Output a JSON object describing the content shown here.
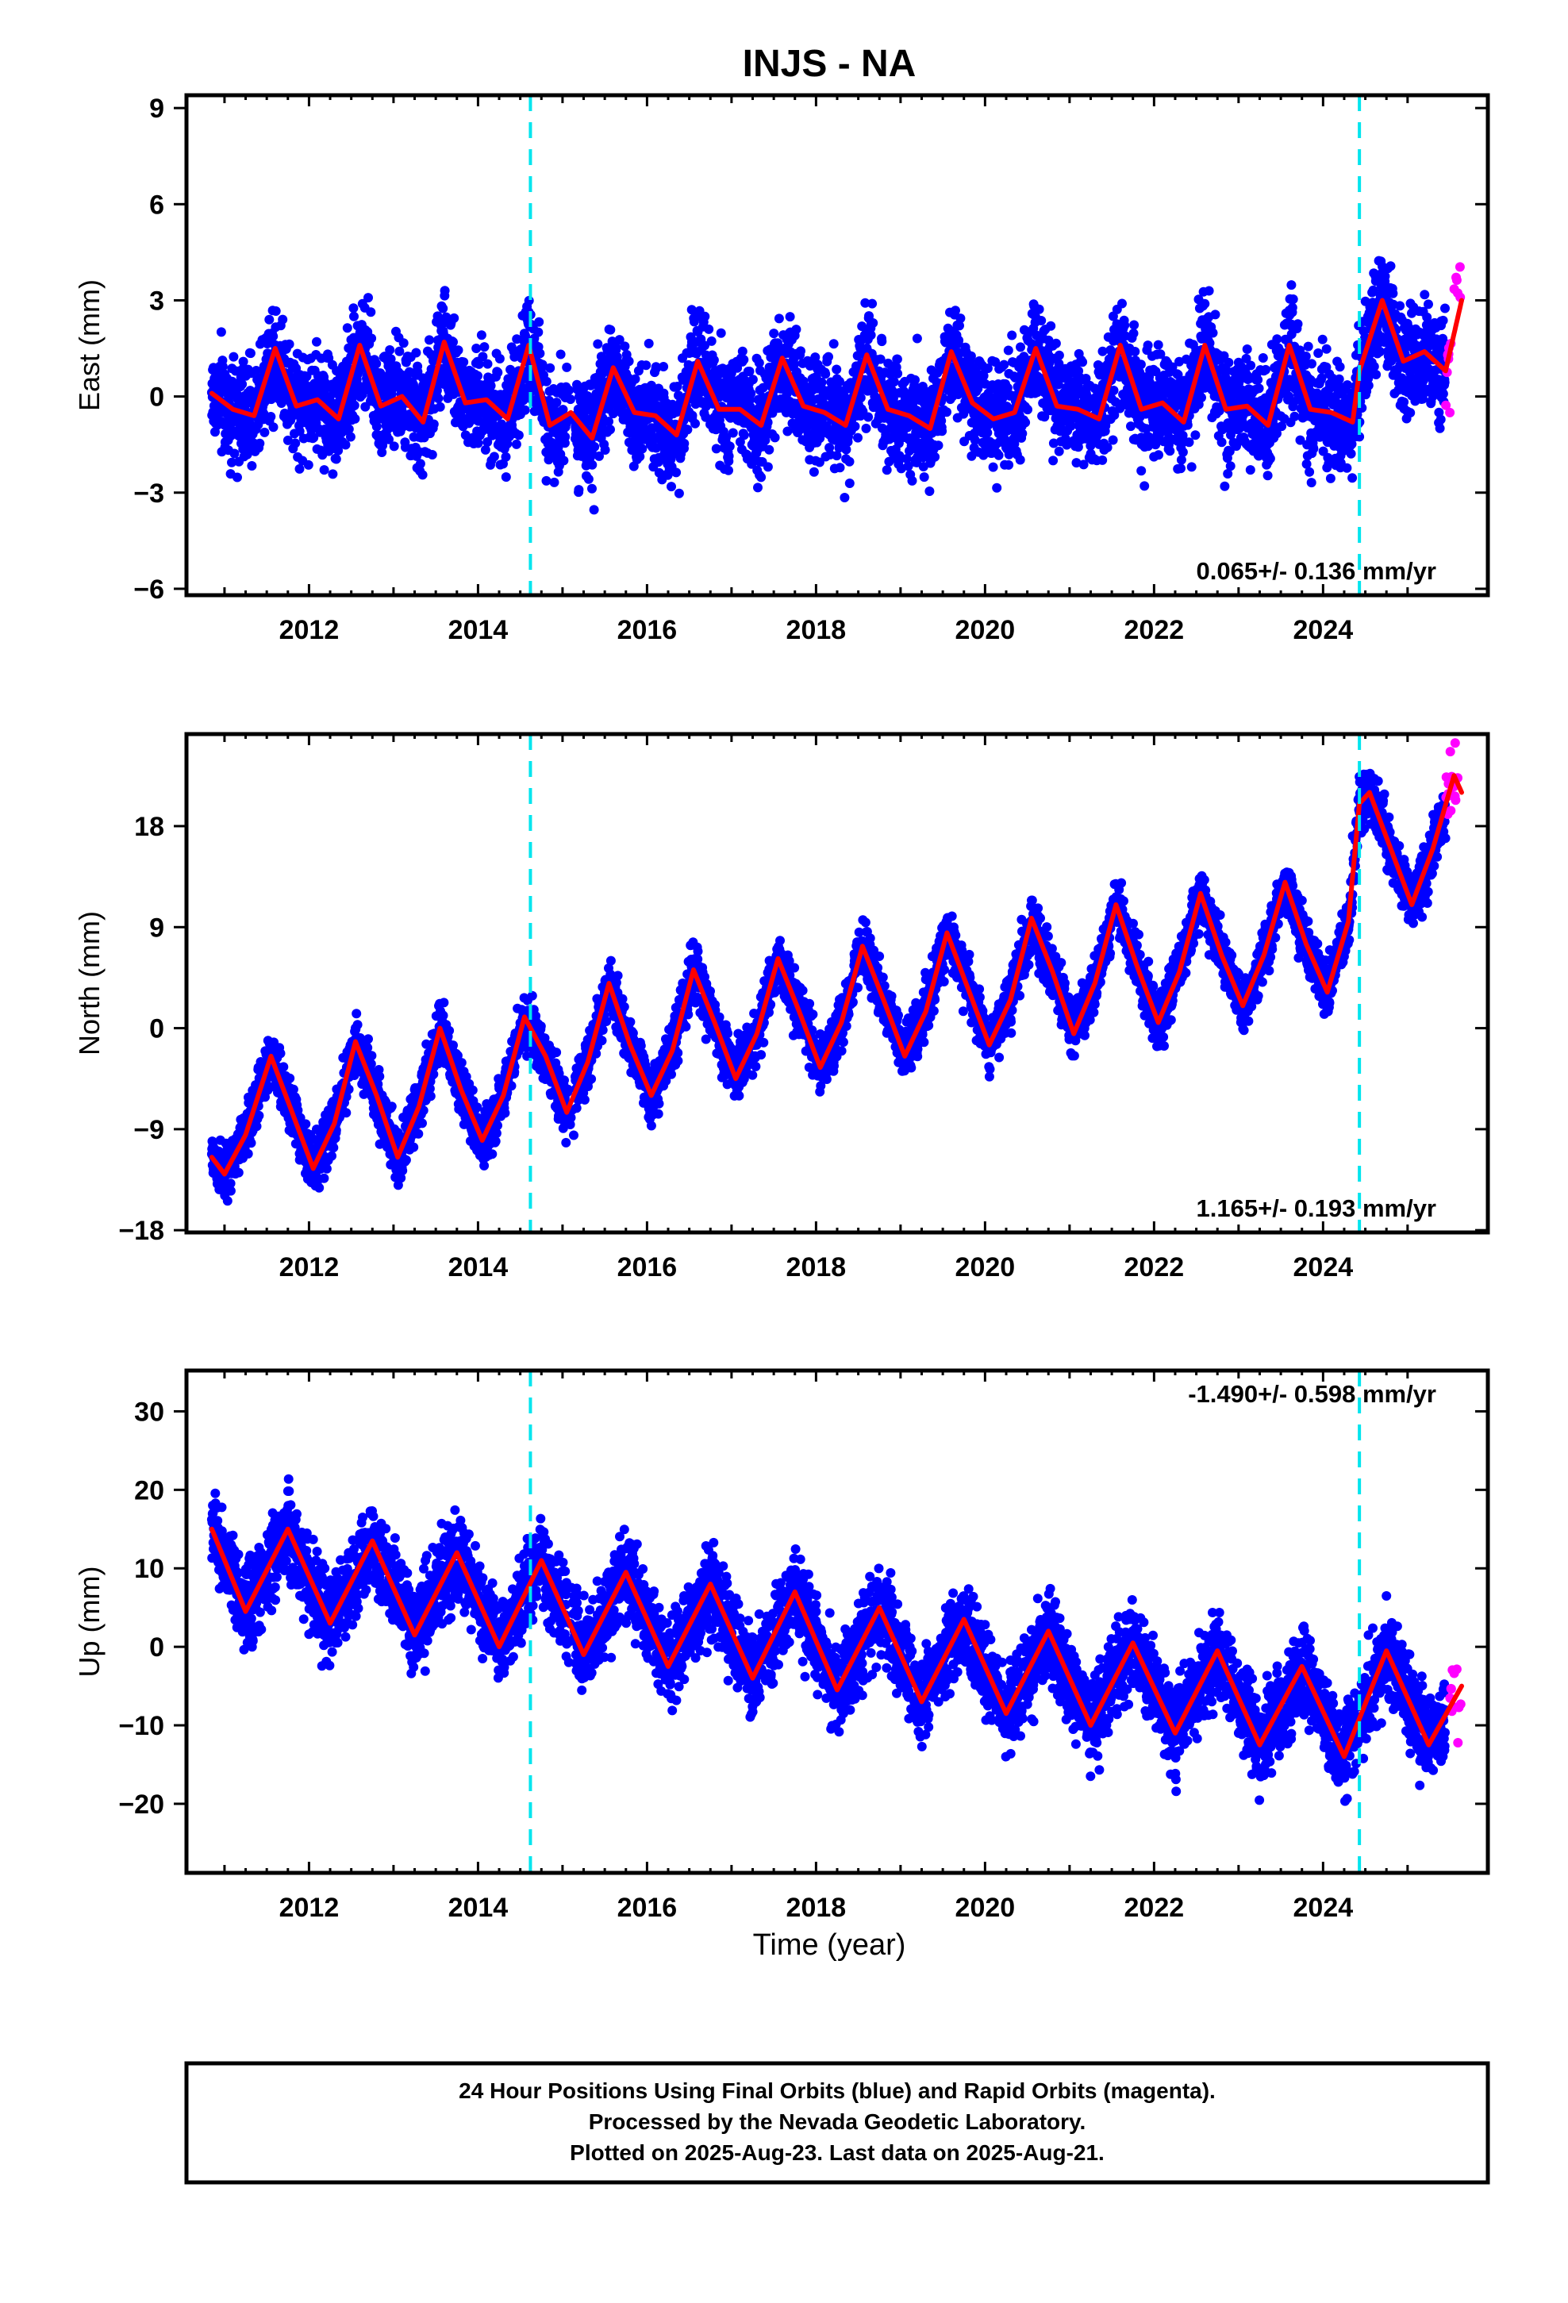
{
  "chart_data": {
    "type": "scatter",
    "title": "INJS - NA",
    "xlabel": "Time (year)",
    "x_ticks": [
      2012,
      2014,
      2016,
      2018,
      2020,
      2022,
      2024
    ],
    "xlim": [
      2010.55,
      2025.95
    ],
    "equipment_change_epochs": [
      2014.62,
      2024.43
    ],
    "data_span": [
      2010.85,
      2025.64
    ],
    "rapid_span": [
      2025.45,
      2025.64
    ],
    "colors": {
      "final_orbits": "#0000ff",
      "rapid_orbits": "#ff00ff",
      "model": "#ff0000",
      "break_line": "#00e5ee"
    },
    "panels": [
      {
        "id": "east",
        "ylabel": "East (mm)",
        "ylim": [
          -6.2,
          9.4
        ],
        "y_ticks": [
          -6,
          -3,
          0,
          3,
          6,
          9
        ],
        "rate_text": "0.065+/- 0.136 mm/yr",
        "rate_position": "bottom-right",
        "model_description": "annual + semiannual seasonal fit with step offset at 2024.43",
        "noise_amplitude_mm": 1.5,
        "model_samples": {
          "t": [
            2010.85,
            2011.1,
            2011.35,
            2011.6,
            2011.85,
            2012.1,
            2012.35,
            2012.6,
            2012.85,
            2013.1,
            2013.35,
            2013.6,
            2013.85,
            2014.1,
            2014.35,
            2014.6,
            2014.85,
            2015.1,
            2015.35,
            2015.6,
            2015.85,
            2016.1,
            2016.35,
            2016.6,
            2016.85,
            2017.1,
            2017.35,
            2017.6,
            2017.85,
            2018.1,
            2018.35,
            2018.6,
            2018.85,
            2019.1,
            2019.35,
            2019.6,
            2019.85,
            2020.1,
            2020.35,
            2020.6,
            2020.85,
            2021.1,
            2021.35,
            2021.6,
            2021.85,
            2022.1,
            2022.35,
            2022.6,
            2022.85,
            2023.1,
            2023.35,
            2023.6,
            2023.85,
            2024.1,
            2024.35,
            2024.43,
            2024.7,
            2024.95,
            2025.2,
            2025.45,
            2025.64
          ],
          "y": [
            0.1,
            -0.4,
            -0.6,
            1.5,
            -0.3,
            -0.1,
            -0.7,
            1.6,
            -0.3,
            0.0,
            -0.8,
            1.7,
            -0.2,
            -0.1,
            -0.7,
            1.6,
            -0.9,
            -0.5,
            -1.3,
            0.9,
            -0.5,
            -0.6,
            -1.2,
            1.1,
            -0.4,
            -0.4,
            -0.9,
            1.2,
            -0.3,
            -0.5,
            -0.9,
            1.3,
            -0.4,
            -0.6,
            -1.0,
            1.4,
            -0.2,
            -0.7,
            -0.5,
            1.5,
            -0.3,
            -0.4,
            -0.7,
            1.6,
            -0.4,
            -0.2,
            -0.8,
            1.6,
            -0.4,
            -0.3,
            -0.9,
            1.6,
            -0.4,
            -0.5,
            -0.8,
            0.8,
            3.0,
            1.1,
            1.4,
            0.8,
            3.0
          ]
        }
      },
      {
        "id": "north",
        "ylabel": "North (mm)",
        "ylim": [
          -18.2,
          26.2
        ],
        "y_ticks": [
          -18,
          -9,
          0,
          9,
          18
        ],
        "rate_text": "1.165+/- 0.193 mm/yr",
        "rate_position": "bottom-right",
        "model_description": "linear trend + annual seasonal fit with step offset at 2024.43",
        "noise_amplitude_mm": 2.2,
        "model_samples": {
          "t": [
            2010.85,
            2011.0,
            2011.25,
            2011.55,
            2011.8,
            2012.05,
            2012.3,
            2012.55,
            2012.8,
            2013.05,
            2013.3,
            2013.55,
            2013.8,
            2014.05,
            2014.3,
            2014.55,
            2014.8,
            2015.05,
            2015.3,
            2015.55,
            2015.8,
            2016.05,
            2016.3,
            2016.55,
            2016.8,
            2017.05,
            2017.3,
            2017.55,
            2017.8,
            2018.05,
            2018.3,
            2018.55,
            2018.8,
            2019.05,
            2019.3,
            2019.55,
            2019.8,
            2020.05,
            2020.3,
            2020.55,
            2020.8,
            2021.05,
            2021.3,
            2021.55,
            2021.8,
            2022.05,
            2022.3,
            2022.55,
            2022.8,
            2023.05,
            2023.3,
            2023.55,
            2023.8,
            2024.05,
            2024.3,
            2024.43,
            2024.55,
            2024.8,
            2025.05,
            2025.3,
            2025.55,
            2025.64
          ],
          "y": [
            -11.5,
            -13.0,
            -9.5,
            -2.5,
            -7.5,
            -12.5,
            -8.5,
            -1.2,
            -6.0,
            -11.5,
            -7.0,
            0.0,
            -5.5,
            -10.0,
            -6.0,
            1.0,
            -2.5,
            -7.5,
            -3.0,
            4.0,
            -1.5,
            -6.0,
            -2.0,
            5.2,
            0.5,
            -4.5,
            -0.5,
            6.2,
            1.5,
            -3.5,
            0.5,
            7.3,
            2.5,
            -2.5,
            1.5,
            8.5,
            3.5,
            -1.5,
            2.5,
            9.8,
            5.0,
            -0.5,
            4.0,
            11.0,
            5.5,
            0.5,
            5.0,
            12.0,
            6.5,
            2.0,
            6.5,
            13.0,
            7.5,
            3.2,
            9.5,
            20.0,
            21.0,
            16.0,
            11.0,
            16.0,
            22.5,
            21.0
          ]
        }
      },
      {
        "id": "up",
        "ylabel": "Up (mm)",
        "ylim": [
          -28.8,
          35.2
        ],
        "y_ticks": [
          -20,
          -10,
          0,
          10,
          20,
          30
        ],
        "rate_text": "-1.490+/- 0.598 mm/yr",
        "rate_position": "top-right",
        "model_description": "linear trend + annual seasonal fit",
        "noise_amplitude_mm": 5.0,
        "model_samples": {
          "t": [
            2010.85,
            2011.25,
            2011.75,
            2012.25,
            2012.75,
            2013.25,
            2013.75,
            2014.25,
            2014.75,
            2015.25,
            2015.75,
            2016.25,
            2016.75,
            2017.25,
            2017.75,
            2018.25,
            2018.75,
            2019.25,
            2019.75,
            2020.25,
            2020.75,
            2021.25,
            2021.75,
            2022.25,
            2022.75,
            2023.25,
            2023.75,
            2024.25,
            2024.75,
            2025.25,
            2025.64
          ],
          "y": [
            15.0,
            4.5,
            15.0,
            3.0,
            13.5,
            1.5,
            12.0,
            0.0,
            11.0,
            -1.0,
            9.5,
            -2.5,
            8.0,
            -4.0,
            7.0,
            -5.5,
            5.0,
            -7.0,
            3.5,
            -8.5,
            2.0,
            -10.0,
            0.5,
            -11.0,
            -0.5,
            -12.5,
            -2.5,
            -14.0,
            -0.5,
            -12.5,
            -5.0
          ]
        }
      }
    ]
  },
  "footer": {
    "line1": "24 Hour Positions Using Final Orbits (blue) and Rapid Orbits (magenta).",
    "line2": "Processed by the Nevada Geodetic Laboratory.",
    "line3": "Plotted on 2025-Aug-23. Last data on 2025-Aug-21."
  }
}
